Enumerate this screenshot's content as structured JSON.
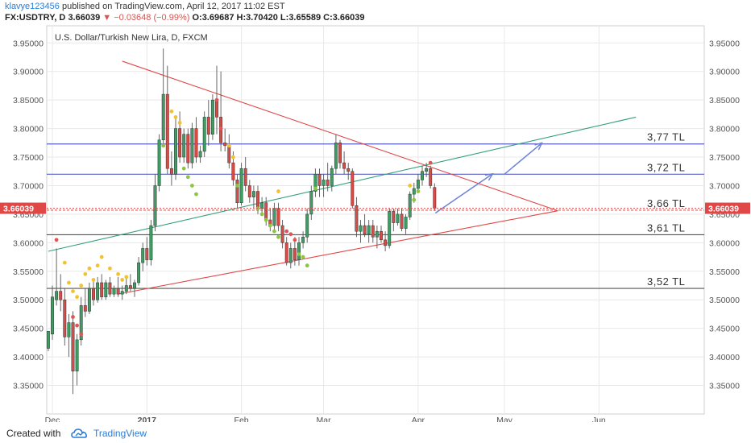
{
  "header": {
    "author": "klavye123456",
    "published_text": "published on TradingView.com, April 12, 2017 11:02 EST",
    "symbol": "FX:USDTRY, D",
    "last": "3.66039",
    "change": "−0.03648 (−0.99%)",
    "ohlc": "O:3.69687 H:3.70420 L:3.65589 C:3.66039"
  },
  "chart_data": {
    "type": "candlestick",
    "title": "U.S. Dollar/Turkish New Lira, D, FXCM",
    "ylim": [
      3.3,
      3.98
    ],
    "y_ticks": [
      "3.35000",
      "3.40000",
      "3.45000",
      "3.50000",
      "3.55000",
      "3.60000",
      "3.65000",
      "3.70000",
      "3.75000",
      "3.80000",
      "3.85000",
      "3.90000",
      "3.95000"
    ],
    "x_ticks": [
      {
        "label": "Dec",
        "day": 0
      },
      {
        "label": "2017",
        "day": 23
      },
      {
        "label": "Feb",
        "day": 46
      },
      {
        "label": "Mar",
        "day": 66
      },
      {
        "label": "Apr",
        "day": 89
      },
      {
        "label": "May",
        "day": 110
      },
      {
        "label": "Jun",
        "day": 133
      }
    ],
    "last_price_label": "3.66039",
    "candles": [
      {
        "d": -1,
        "o": 3.415,
        "h": 3.44,
        "l": 3.41,
        "c": 3.445
      },
      {
        "d": 0,
        "o": 3.44,
        "h": 3.525,
        "l": 3.43,
        "c": 3.505
      },
      {
        "d": 1,
        "o": 3.5,
        "h": 3.59,
        "l": 3.49,
        "c": 3.515
      },
      {
        "d": 2,
        "o": 3.515,
        "h": 3.545,
        "l": 3.48,
        "c": 3.5
      },
      {
        "d": 3,
        "o": 3.5,
        "h": 3.52,
        "l": 3.42,
        "c": 3.435
      },
      {
        "d": 4,
        "o": 3.435,
        "h": 3.475,
        "l": 3.4,
        "c": 3.46
      },
      {
        "d": 5,
        "o": 3.46,
        "h": 3.48,
        "l": 3.335,
        "c": 3.375
      },
      {
        "d": 6,
        "o": 3.375,
        "h": 3.44,
        "l": 3.35,
        "c": 3.43
      },
      {
        "d": 7,
        "o": 3.43,
        "h": 3.505,
        "l": 3.42,
        "c": 3.49
      },
      {
        "d": 8,
        "o": 3.49,
        "h": 3.52,
        "l": 3.47,
        "c": 3.48
      },
      {
        "d": 9,
        "o": 3.48,
        "h": 3.53,
        "l": 3.475,
        "c": 3.52
      },
      {
        "d": 10,
        "o": 3.52,
        "h": 3.535,
        "l": 3.49,
        "c": 3.5
      },
      {
        "d": 11,
        "o": 3.5,
        "h": 3.54,
        "l": 3.495,
        "c": 3.53
      },
      {
        "d": 12,
        "o": 3.53,
        "h": 3.545,
        "l": 3.5,
        "c": 3.505
      },
      {
        "d": 13,
        "o": 3.505,
        "h": 3.535,
        "l": 3.5,
        "c": 3.53
      },
      {
        "d": 14,
        "o": 3.53,
        "h": 3.54,
        "l": 3.505,
        "c": 3.51
      },
      {
        "d": 15,
        "o": 3.51,
        "h": 3.525,
        "l": 3.505,
        "c": 3.52
      },
      {
        "d": 16,
        "o": 3.52,
        "h": 3.54,
        "l": 3.505,
        "c": 3.51
      },
      {
        "d": 17,
        "o": 3.51,
        "h": 3.525,
        "l": 3.5,
        "c": 3.515
      },
      {
        "d": 18,
        "o": 3.515,
        "h": 3.54,
        "l": 3.51,
        "c": 3.525
      },
      {
        "d": 19,
        "o": 3.525,
        "h": 3.545,
        "l": 3.515,
        "c": 3.52
      },
      {
        "d": 20,
        "o": 3.52,
        "h": 3.535,
        "l": 3.505,
        "c": 3.53
      },
      {
        "d": 21,
        "o": 3.53,
        "h": 3.575,
        "l": 3.525,
        "c": 3.565
      },
      {
        "d": 22,
        "o": 3.565,
        "h": 3.6,
        "l": 3.55,
        "c": 3.59
      },
      {
        "d": 23,
        "o": 3.59,
        "h": 3.61,
        "l": 3.56,
        "c": 3.57
      },
      {
        "d": 24,
        "o": 3.57,
        "h": 3.64,
        "l": 3.56,
        "c": 3.63
      },
      {
        "d": 25,
        "o": 3.63,
        "h": 3.72,
        "l": 3.62,
        "c": 3.7
      },
      {
        "d": 26,
        "o": 3.7,
        "h": 3.79,
        "l": 3.69,
        "c": 3.78
      },
      {
        "d": 27,
        "o": 3.78,
        "h": 3.94,
        "l": 3.77,
        "c": 3.86
      },
      {
        "d": 28,
        "o": 3.86,
        "h": 3.91,
        "l": 3.72,
        "c": 3.73
      },
      {
        "d": 29,
        "o": 3.73,
        "h": 3.76,
        "l": 3.7,
        "c": 3.72
      },
      {
        "d": 30,
        "o": 3.72,
        "h": 3.82,
        "l": 3.71,
        "c": 3.8
      },
      {
        "d": 31,
        "o": 3.8,
        "h": 3.83,
        "l": 3.74,
        "c": 3.75
      },
      {
        "d": 32,
        "o": 3.75,
        "h": 3.8,
        "l": 3.74,
        "c": 3.79
      },
      {
        "d": 33,
        "o": 3.79,
        "h": 3.8,
        "l": 3.73,
        "c": 3.74
      },
      {
        "d": 34,
        "o": 3.74,
        "h": 3.81,
        "l": 3.73,
        "c": 3.8
      },
      {
        "d": 35,
        "o": 3.8,
        "h": 3.82,
        "l": 3.74,
        "c": 3.75
      },
      {
        "d": 36,
        "o": 3.75,
        "h": 3.77,
        "l": 3.74,
        "c": 3.76
      },
      {
        "d": 37,
        "o": 3.76,
        "h": 3.83,
        "l": 3.75,
        "c": 3.82
      },
      {
        "d": 38,
        "o": 3.82,
        "h": 3.85,
        "l": 3.77,
        "c": 3.79
      },
      {
        "d": 39,
        "o": 3.79,
        "h": 3.86,
        "l": 3.78,
        "c": 3.85
      },
      {
        "d": 40,
        "o": 3.85,
        "h": 3.91,
        "l": 3.79,
        "c": 3.82
      },
      {
        "d": 41,
        "o": 3.82,
        "h": 3.9,
        "l": 3.76,
        "c": 3.775
      },
      {
        "d": 42,
        "o": 3.775,
        "h": 3.8,
        "l": 3.76,
        "c": 3.77
      },
      {
        "d": 43,
        "o": 3.77,
        "h": 3.79,
        "l": 3.73,
        "c": 3.74
      },
      {
        "d": 44,
        "o": 3.74,
        "h": 3.76,
        "l": 3.7,
        "c": 3.71
      },
      {
        "d": 45,
        "o": 3.71,
        "h": 3.72,
        "l": 3.66,
        "c": 3.67
      },
      {
        "d": 46,
        "o": 3.67,
        "h": 3.74,
        "l": 3.665,
        "c": 3.73
      },
      {
        "d": 47,
        "o": 3.73,
        "h": 3.75,
        "l": 3.69,
        "c": 3.7
      },
      {
        "d": 48,
        "o": 3.7,
        "h": 3.71,
        "l": 3.67,
        "c": 3.68
      },
      {
        "d": 49,
        "o": 3.68,
        "h": 3.7,
        "l": 3.66,
        "c": 3.69
      },
      {
        "d": 50,
        "o": 3.69,
        "h": 3.7,
        "l": 3.65,
        "c": 3.66
      },
      {
        "d": 51,
        "o": 3.66,
        "h": 3.68,
        "l": 3.65,
        "c": 3.67
      },
      {
        "d": 52,
        "o": 3.67,
        "h": 3.68,
        "l": 3.63,
        "c": 3.64
      },
      {
        "d": 53,
        "o": 3.64,
        "h": 3.66,
        "l": 3.62,
        "c": 3.63
      },
      {
        "d": 54,
        "o": 3.63,
        "h": 3.67,
        "l": 3.62,
        "c": 3.66
      },
      {
        "d": 55,
        "o": 3.66,
        "h": 3.67,
        "l": 3.62,
        "c": 3.63
      },
      {
        "d": 56,
        "o": 3.63,
        "h": 3.64,
        "l": 3.59,
        "c": 3.6
      },
      {
        "d": 57,
        "o": 3.6,
        "h": 3.61,
        "l": 3.56,
        "c": 3.565
      },
      {
        "d": 58,
        "o": 3.565,
        "h": 3.6,
        "l": 3.555,
        "c": 3.59
      },
      {
        "d": 59,
        "o": 3.59,
        "h": 3.61,
        "l": 3.56,
        "c": 3.57
      },
      {
        "d": 60,
        "o": 3.57,
        "h": 3.61,
        "l": 3.56,
        "c": 3.6
      },
      {
        "d": 61,
        "o": 3.6,
        "h": 3.62,
        "l": 3.59,
        "c": 3.61
      },
      {
        "d": 62,
        "o": 3.61,
        "h": 3.66,
        "l": 3.6,
        "c": 3.65
      },
      {
        "d": 63,
        "o": 3.65,
        "h": 3.7,
        "l": 3.64,
        "c": 3.69
      },
      {
        "d": 64,
        "o": 3.69,
        "h": 3.73,
        "l": 3.68,
        "c": 3.72
      },
      {
        "d": 65,
        "o": 3.72,
        "h": 3.73,
        "l": 3.68,
        "c": 3.7
      },
      {
        "d": 66,
        "o": 3.7,
        "h": 3.72,
        "l": 3.68,
        "c": 3.71
      },
      {
        "d": 67,
        "o": 3.71,
        "h": 3.74,
        "l": 3.69,
        "c": 3.7
      },
      {
        "d": 68,
        "o": 3.7,
        "h": 3.735,
        "l": 3.69,
        "c": 3.73
      },
      {
        "d": 69,
        "o": 3.73,
        "h": 3.79,
        "l": 3.72,
        "c": 3.775
      },
      {
        "d": 70,
        "o": 3.775,
        "h": 3.78,
        "l": 3.73,
        "c": 3.74
      },
      {
        "d": 71,
        "o": 3.74,
        "h": 3.76,
        "l": 3.72,
        "c": 3.73
      },
      {
        "d": 72,
        "o": 3.73,
        "h": 3.74,
        "l": 3.71,
        "c": 3.725
      },
      {
        "d": 73,
        "o": 3.725,
        "h": 3.73,
        "l": 3.66,
        "c": 3.665
      },
      {
        "d": 74,
        "o": 3.665,
        "h": 3.68,
        "l": 3.61,
        "c": 3.62
      },
      {
        "d": 75,
        "o": 3.62,
        "h": 3.64,
        "l": 3.6,
        "c": 3.63
      },
      {
        "d": 76,
        "o": 3.63,
        "h": 3.65,
        "l": 3.61,
        "c": 3.615
      },
      {
        "d": 77,
        "o": 3.615,
        "h": 3.64,
        "l": 3.6,
        "c": 3.63
      },
      {
        "d": 78,
        "o": 3.63,
        "h": 3.64,
        "l": 3.6,
        "c": 3.61
      },
      {
        "d": 79,
        "o": 3.61,
        "h": 3.63,
        "l": 3.59,
        "c": 3.62
      },
      {
        "d": 80,
        "o": 3.62,
        "h": 3.63,
        "l": 3.6,
        "c": 3.605
      },
      {
        "d": 81,
        "o": 3.605,
        "h": 3.62,
        "l": 3.585,
        "c": 3.595
      },
      {
        "d": 82,
        "o": 3.595,
        "h": 3.66,
        "l": 3.59,
        "c": 3.655
      },
      {
        "d": 83,
        "o": 3.655,
        "h": 3.66,
        "l": 3.62,
        "c": 3.635
      },
      {
        "d": 84,
        "o": 3.635,
        "h": 3.66,
        "l": 3.63,
        "c": 3.65
      },
      {
        "d": 85,
        "o": 3.65,
        "h": 3.66,
        "l": 3.62,
        "c": 3.625
      },
      {
        "d": 86,
        "o": 3.625,
        "h": 3.65,
        "l": 3.615,
        "c": 3.645
      },
      {
        "d": 87,
        "o": 3.645,
        "h": 3.69,
        "l": 3.64,
        "c": 3.685
      },
      {
        "d": 88,
        "o": 3.685,
        "h": 3.705,
        "l": 3.67,
        "c": 3.695
      },
      {
        "d": 89,
        "o": 3.695,
        "h": 3.72,
        "l": 3.69,
        "c": 3.71
      },
      {
        "d": 90,
        "o": 3.71,
        "h": 3.735,
        "l": 3.7,
        "c": 3.725
      },
      {
        "d": 91,
        "o": 3.725,
        "h": 3.74,
        "l": 3.715,
        "c": 3.73
      },
      {
        "d": 92,
        "o": 3.73,
        "h": 3.735,
        "l": 3.695,
        "c": 3.7
      },
      {
        "d": 93,
        "o": 3.69687,
        "h": 3.7042,
        "l": 3.65589,
        "c": 3.66039
      }
    ],
    "dots_yellow": [
      {
        "d": 3,
        "v": 3.565
      },
      {
        "d": 4,
        "v": 3.53
      },
      {
        "d": 5,
        "v": 3.515
      },
      {
        "d": 6,
        "v": 3.505
      },
      {
        "d": 7,
        "v": 3.525
      },
      {
        "d": 8,
        "v": 3.545
      },
      {
        "d": 9,
        "v": 3.555
      },
      {
        "d": 10,
        "v": 3.535
      },
      {
        "d": 11,
        "v": 3.56
      },
      {
        "d": 12,
        "v": 3.575
      },
      {
        "d": 14,
        "v": 3.555
      },
      {
        "d": 16,
        "v": 3.545
      },
      {
        "d": 17,
        "v": 3.535
      },
      {
        "d": 18,
        "v": 3.54
      },
      {
        "d": 29,
        "v": 3.83
      },
      {
        "d": 30,
        "v": 3.82
      },
      {
        "d": 31,
        "v": 3.81
      },
      {
        "d": 43,
        "v": 3.77
      },
      {
        "d": 44,
        "v": 3.75
      },
      {
        "d": 55,
        "v": 3.69
      },
      {
        "d": 87,
        "v": 3.7
      }
    ],
    "dots_green": [
      {
        "d": 27,
        "v": 3.77
      },
      {
        "d": 32,
        "v": 3.73
      },
      {
        "d": 33,
        "v": 3.715
      },
      {
        "d": 34,
        "v": 3.7
      },
      {
        "d": 35,
        "v": 3.685
      },
      {
        "d": 45,
        "v": 3.7
      },
      {
        "d": 50,
        "v": 3.66
      },
      {
        "d": 51,
        "v": 3.65
      },
      {
        "d": 52,
        "v": 3.64
      },
      {
        "d": 53,
        "v": 3.63
      },
      {
        "d": 54,
        "v": 3.62
      },
      {
        "d": 55,
        "v": 3.61
      },
      {
        "d": 60,
        "v": 3.58
      },
      {
        "d": 61,
        "v": 3.575
      },
      {
        "d": 62,
        "v": 3.56
      },
      {
        "d": 64,
        "v": 3.695
      },
      {
        "d": 88,
        "v": 3.675
      },
      {
        "d": 89,
        "v": 3.69
      }
    ],
    "dots_red": [
      {
        "d": 1,
        "v": 3.605
      },
      {
        "d": 5,
        "v": 3.47
      },
      {
        "d": 6,
        "v": 3.455
      },
      {
        "d": 7,
        "v": 3.44
      },
      {
        "d": 40,
        "v": 3.85
      },
      {
        "d": 41,
        "v": 3.8
      },
      {
        "d": 57,
        "v": 3.62
      },
      {
        "d": 58,
        "v": 3.615
      },
      {
        "d": 59,
        "v": 3.605
      },
      {
        "d": 92,
        "v": 3.74
      }
    ],
    "hlines": [
      {
        "v": 3.773,
        "label": "3,77 TL",
        "color": "#5a5fc7"
      },
      {
        "v": 3.72,
        "label": "3,72 TL",
        "color": "#5a5fc7"
      },
      {
        "v": 3.657,
        "label": "3,66 TL",
        "color": "#e15a5a"
      },
      {
        "v": 3.614,
        "label": "3,61 TL",
        "color": "#555555"
      },
      {
        "v": 3.52,
        "label": "3,52 TL",
        "color": "#555555"
      }
    ],
    "trend_lines": [
      {
        "name": "descending-resistance",
        "color": "#e04848",
        "p1": {
          "d": 17,
          "v": 3.918
        },
        "p2": {
          "d": 123,
          "v": 3.656
        }
      },
      {
        "name": "ascending-support",
        "color": "#e04848",
        "p1": {
          "d": 16,
          "v": 3.51
        },
        "p2": {
          "d": 123,
          "v": 3.656
        }
      },
      {
        "name": "green-channel",
        "color": "#35a07a",
        "p1": {
          "d": -1,
          "v": 3.585
        },
        "p2": {
          "d": 142,
          "v": 3.82
        }
      }
    ],
    "projection": [
      {
        "d": 93.2,
        "v": 3.652
      },
      {
        "d": 107,
        "v": 3.72
      },
      {
        "d": 110,
        "v": 3.72
      },
      {
        "d": 119,
        "v": 3.774
      }
    ]
  },
  "footer": {
    "created_with": "Created with",
    "brand": "TradingView"
  },
  "colors": {
    "up": "#3f9d63",
    "down": "#d94b44",
    "grid": "#e8e8e8",
    "axis_text": "#555555",
    "price_tag": "#e04848"
  }
}
